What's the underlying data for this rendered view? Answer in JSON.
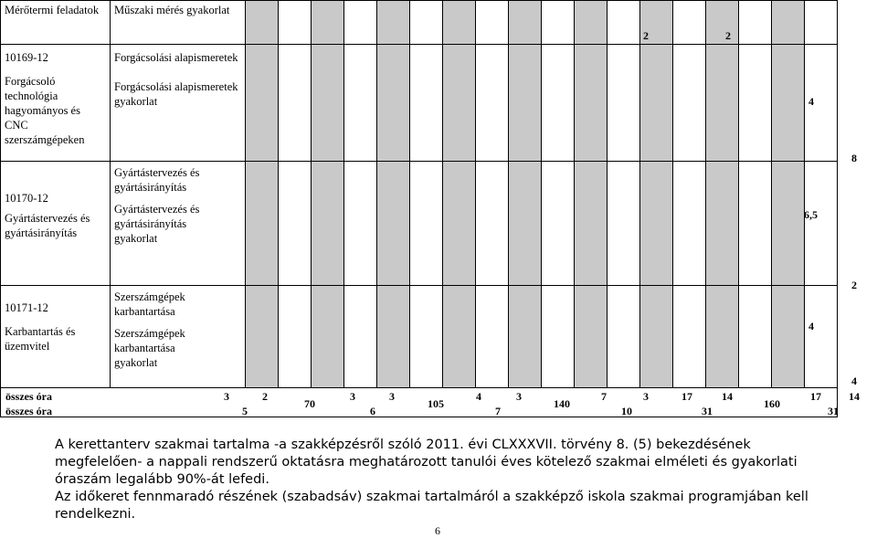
{
  "header": {
    "col1": "Mérőtermi feladatok",
    "col2": "Műszaki mérés gyakorlat"
  },
  "modules": [
    {
      "code": "10169-12",
      "name": "Forgácsoló technológia hagyományos és CNC szerszámgépeken",
      "subjects": [
        "Forgácsolási alapismeretek",
        "Forgácsolási alapismeretek gyakorlat"
      ]
    },
    {
      "code": "10170-12",
      "name": "Gyártástervezés és gyártásirányítás",
      "subjects": [
        "Gyártástervezés és gyártásirányítás",
        "Gyártástervezés és gyártásirányítás gyakorlat"
      ]
    },
    {
      "code": "10171-12",
      "name": "Karbantartás és üzemvitel",
      "subjects": [
        "Szerszámgépek karbantartása",
        "Szerszámgépek karbantartása gyakorlat"
      ]
    }
  ],
  "cell_values": {
    "v1": "2",
    "v2": "2",
    "v3": "4",
    "v4": "8",
    "v5": "6,5",
    "v6": "2",
    "v7": "4",
    "v8": "4"
  },
  "totals": {
    "label1": "összes óra",
    "label2": "összes óra",
    "row1": [
      "3",
      "2",
      "3",
      "3",
      "4",
      "3",
      "7",
      "3",
      "17",
      "14",
      "17",
      "14"
    ],
    "merged": [
      "70",
      "105",
      "140",
      "160"
    ],
    "row2": [
      "5",
      "6",
      "7",
      "10",
      "31",
      "31"
    ]
  },
  "note": {
    "line1": "A kerettanterv szakmai tartalma -a szakképzésről szóló 2011. évi CLXXXVII. törvény 8. (5) bekezdésének megfelelően- a nappali rendszerű oktatásra meghatározott tanulói éves kötelező szakmai elméleti és gyakorlati óraszám legalább 90%-át lefedi.",
    "line2": "Az időkeret fennmaradó részének (szabadsáv) szakmai tartalmáról a szakképző iskola szakmai programjában kell rendelkezni."
  },
  "page_number": "6"
}
